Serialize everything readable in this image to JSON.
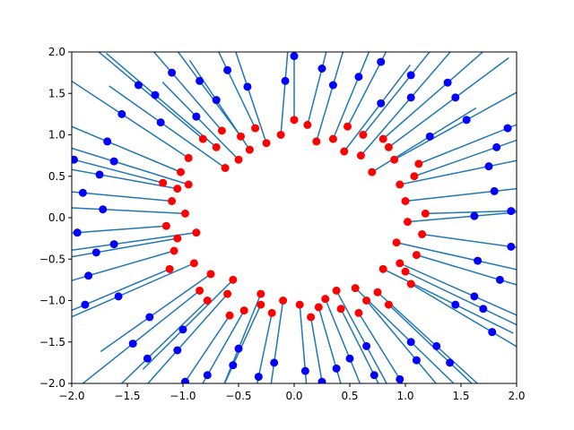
{
  "chart_data": {
    "type": "scatter",
    "title": "",
    "xlabel": "",
    "ylabel": "",
    "xlim": [
      -2.0,
      2.0
    ],
    "ylim": [
      -2.0,
      2.0
    ],
    "grid": false,
    "x_ticks": [
      "−2.0",
      "−1.5",
      "−1.0",
      "−0.5",
      "0.0",
      "0.5",
      "1.0",
      "1.5",
      "2.0"
    ],
    "y_ticks": [
      "−2.0",
      "−1.5",
      "−1.0",
      "−0.5",
      "0.0",
      "0.5",
      "1.0",
      "1.5",
      "2.0"
    ],
    "x_tick_values": [
      -2.0,
      -1.5,
      -1.0,
      -0.5,
      0.0,
      0.5,
      1.0,
      1.5,
      2.0
    ],
    "y_tick_values": [
      -2.0,
      -1.5,
      -1.0,
      -0.5,
      0.0,
      0.5,
      1.0,
      1.5,
      2.0
    ],
    "colors": {
      "red": "#ff0000",
      "blue": "#0000ff",
      "line": "#1f77b4"
    },
    "pairs": [
      {
        "red": [
          0.8,
          0.95
        ],
        "blue": [
          1.38,
          1.63
        ]
      },
      {
        "red": [
          1.02,
          -0.05
        ],
        "blue": [
          1.62,
          0.02
        ]
      },
      {
        "red": [
          -0.62,
          0.6
        ],
        "blue": [
          -1.2,
          1.15
        ]
      },
      {
        "red": [
          -0.88,
          -0.18
        ],
        "blue": [
          -1.62,
          -0.32
        ]
      },
      {
        "red": [
          0.22,
          -1.08
        ],
        "blue": [
          0.38,
          -1.82
        ]
      },
      {
        "red": [
          -0.12,
          1.0
        ],
        "blue": [
          -0.08,
          1.65
        ]
      },
      {
        "red": [
          0.55,
          -0.85
        ],
        "blue": [
          1.05,
          -1.5
        ]
      },
      {
        "red": [
          -0.3,
          -1.05
        ],
        "blue": [
          -0.55,
          -1.78
        ]
      },
      {
        "red": [
          0.95,
          0.4
        ],
        "blue": [
          1.75,
          0.62
        ]
      },
      {
        "red": [
          -1.05,
          0.35
        ],
        "blue": [
          -1.75,
          0.52
        ]
      },
      {
        "red": [
          0.6,
          0.75
        ],
        "blue": [
          1.05,
          1.45
        ]
      },
      {
        "red": [
          -0.75,
          -0.68
        ],
        "blue": [
          -1.3,
          -1.2
        ]
      },
      {
        "red": [
          0.12,
          1.12
        ],
        "blue": [
          0.25,
          1.8
        ]
      },
      {
        "red": [
          1.1,
          -0.45
        ],
        "blue": [
          1.85,
          -0.75
        ]
      },
      {
        "red": [
          -0.48,
          0.98
        ],
        "blue": [
          -0.85,
          1.65
        ]
      },
      {
        "red": [
          -1.08,
          -0.4
        ],
        "blue": [
          -1.85,
          -0.7
        ]
      },
      {
        "red": [
          0.42,
          -1.1
        ],
        "blue": [
          0.72,
          -1.9
        ]
      },
      {
        "red": [
          -0.6,
          -0.92
        ],
        "blue": [
          -1.05,
          -1.6
        ]
      },
      {
        "red": [
          0.8,
          -0.62
        ],
        "blue": [
          1.45,
          -1.05
        ]
      },
      {
        "red": [
          -0.95,
          0.72
        ],
        "blue": [
          -1.55,
          1.25
        ]
      },
      {
        "red": [
          0.35,
          0.95
        ],
        "blue": [
          0.58,
          1.7
        ]
      },
      {
        "red": [
          1.0,
          0.2
        ],
        "blue": [
          1.8,
          0.32
        ]
      },
      {
        "red": [
          -0.2,
          -1.15
        ],
        "blue": [
          -0.32,
          -1.92
        ]
      },
      {
        "red": [
          -0.98,
          0.05
        ],
        "blue": [
          -1.72,
          0.1
        ]
      },
      {
        "red": [
          0.65,
          -1.0
        ],
        "blue": [
          1.1,
          -1.72
        ]
      },
      {
        "red": [
          -0.35,
          1.08
        ],
        "blue": [
          -0.6,
          1.78
        ]
      },
      {
        "red": [
          1.12,
          0.65
        ],
        "blue": [
          1.92,
          1.08
        ]
      },
      {
        "red": [
          -0.85,
          -0.88
        ],
        "blue": [
          -1.45,
          -1.52
        ]
      },
      {
        "red": [
          0.05,
          -1.05
        ],
        "blue": [
          0.1,
          -1.85
        ]
      },
      {
        "red": [
          0.92,
          -0.3
        ],
        "blue": [
          1.65,
          -0.52
        ]
      },
      {
        "red": [
          -0.7,
          0.85
        ],
        "blue": [
          -1.25,
          1.48
        ]
      },
      {
        "red": [
          -1.15,
          -0.1
        ],
        "blue": [
          -1.95,
          -0.18
        ]
      },
      {
        "red": [
          0.48,
          1.1
        ],
        "blue": [
          0.78,
          1.88
        ]
      },
      {
        "red": [
          1.05,
          -0.8
        ],
        "blue": [
          1.78,
          -1.38
        ]
      },
      {
        "red": [
          -0.45,
          -1.12
        ],
        "blue": [
          -0.78,
          -1.9
        ]
      },
      {
        "red": [
          -1.02,
          0.55
        ],
        "blue": [
          -1.68,
          0.92
        ]
      },
      {
        "red": [
          0.7,
          0.55
        ],
        "blue": [
          1.22,
          0.98
        ]
      },
      {
        "red": [
          -0.55,
          -0.75
        ],
        "blue": [
          -1.0,
          -1.35
        ]
      },
      {
        "red": [
          0.28,
          -0.98
        ],
        "blue": [
          0.5,
          -1.7
        ]
      },
      {
        "red": [
          -0.25,
          0.9
        ],
        "blue": [
          -0.42,
          1.58
        ]
      },
      {
        "red": [
          1.18,
          0.05
        ],
        "blue": [
          1.95,
          0.08
        ]
      },
      {
        "red": [
          -0.9,
          -0.55
        ],
        "blue": [
          -1.58,
          -0.95
        ]
      },
      {
        "red": [
          0.85,
          0.85
        ],
        "blue": [
          1.45,
          1.45
        ]
      },
      {
        "red": [
          -0.1,
          -1.0
        ],
        "blue": [
          -0.18,
          -1.75
        ]
      },
      {
        "red": [
          0.58,
          -1.15
        ],
        "blue": [
          0.95,
          -1.95
        ]
      },
      {
        "red": [
          -1.1,
          0.2
        ],
        "blue": [
          -1.9,
          0.3
        ]
      },
      {
        "red": [
          0.2,
          0.92
        ],
        "blue": [
          0.35,
          1.6
        ]
      },
      {
        "red": [
          0.95,
          -0.55
        ],
        "blue": [
          1.62,
          -0.95
        ]
      },
      {
        "red": [
          -0.65,
          1.05
        ],
        "blue": [
          -1.1,
          1.75
        ]
      },
      {
        "red": [
          -0.78,
          -1.0
        ],
        "blue": [
          -1.32,
          -1.7
        ]
      },
      {
        "red": [
          1.08,
          0.5
        ],
        "blue": [
          1.82,
          0.85
        ]
      },
      {
        "red": [
          -1.12,
          -0.62
        ],
        "blue": [
          -1.88,
          -1.05
        ]
      },
      {
        "red": [
          0.38,
          -0.88
        ],
        "blue": [
          0.65,
          -1.55
        ]
      },
      {
        "red": [
          -0.4,
          0.82
        ],
        "blue": [
          -0.7,
          1.42
        ]
      },
      {
        "red": [
          0.75,
          -0.9
        ],
        "blue": [
          1.28,
          -1.55
        ]
      },
      {
        "red": [
          -0.95,
          0.4
        ],
        "blue": [
          -1.62,
          0.68
        ]
      },
      {
        "red": [
          0.0,
          1.18
        ],
        "blue": [
          0.0,
          1.95
        ]
      },
      {
        "red": [
          1.15,
          -0.2
        ],
        "blue": [
          1.95,
          -0.35
        ]
      },
      {
        "red": [
          -0.58,
          -1.18
        ],
        "blue": [
          -0.98,
          -1.98
        ]
      },
      {
        "red": [
          0.62,
          1.0
        ],
        "blue": [
          1.05,
          1.72
        ]
      },
      {
        "red": [
          -0.82,
          0.95
        ],
        "blue": [
          -1.4,
          1.6
        ]
      },
      {
        "red": [
          0.15,
          -1.2
        ],
        "blue": [
          0.25,
          -1.98
        ]
      },
      {
        "red": [
          -1.05,
          -0.25
        ],
        "blue": [
          -1.78,
          -0.42
        ]
      },
      {
        "red": [
          0.9,
          0.7
        ],
        "blue": [
          1.55,
          1.18
        ]
      },
      {
        "red": [
          -0.3,
          -0.92
        ],
        "blue": [
          -0.5,
          -1.58
        ]
      },
      {
        "red": [
          1.0,
          -0.65
        ],
        "blue": [
          1.7,
          -1.1
        ]
      },
      {
        "red": [
          -0.5,
          0.7
        ],
        "blue": [
          -0.88,
          1.22
        ]
      },
      {
        "red": [
          0.45,
          0.8
        ],
        "blue": [
          0.78,
          1.38
        ]
      },
      {
        "red": [
          -1.18,
          0.42
        ],
        "blue": [
          -1.98,
          0.7
        ]
      },
      {
        "red": [
          0.85,
          -1.05
        ],
        "blue": [
          1.4,
          -1.75
        ]
      }
    ]
  }
}
